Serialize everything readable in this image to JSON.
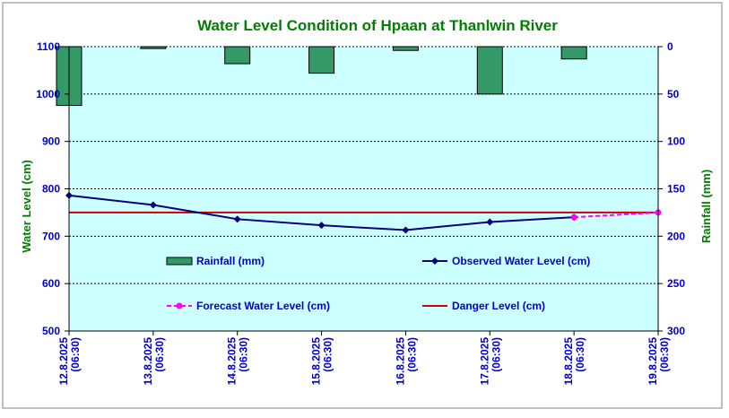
{
  "chart_data": {
    "type": "line",
    "title": "Water Level Condition of Hpaan at Thanlwin River",
    "x": [
      "12.8.2025\n(06:30)",
      "13.8.2025\n(06:30)",
      "14.8.2025\n(06:30)",
      "15.8.2025\n(06:30)",
      "16.8.2025\n(06:30)",
      "17.8.2025\n(06:30)",
      "18.8.2025\n(06:30)",
      "19.8.2025\n(06:30)"
    ],
    "ylabel": "Water Level (cm)",
    "y2label": "Rainfall (mm)",
    "ylim": [
      500,
      1100
    ],
    "yticks": [
      500,
      600,
      700,
      800,
      900,
      1000,
      1100
    ],
    "y2lim": [
      300,
      0
    ],
    "y2ticks": [
      0,
      50,
      100,
      150,
      200,
      250,
      300
    ],
    "grid": true,
    "legend_position": "inside-lower-middle",
    "series": [
      {
        "name": "Rainfall (mm)",
        "type": "bar",
        "axis": "right",
        "color": "#339966",
        "values": [
          62,
          2,
          18,
          28,
          4,
          50,
          13,
          null
        ]
      },
      {
        "name": "Observed Water Level (cm)",
        "type": "line",
        "axis": "left",
        "color": "#000080",
        "marker": "diamond",
        "values": [
          786,
          766,
          736,
          723,
          713,
          730,
          740,
          null
        ]
      },
      {
        "name": "Forecast Water Level (cm)",
        "type": "line",
        "axis": "left",
        "color": "#ff00ff",
        "dashed": true,
        "marker": "circle",
        "values": [
          null,
          null,
          null,
          null,
          null,
          null,
          740,
          750
        ]
      },
      {
        "name": "Danger Level (cm)",
        "type": "line",
        "axis": "left",
        "color": "#cc0000",
        "values": [
          750,
          750,
          750,
          750,
          750,
          750,
          750,
          750
        ]
      }
    ]
  },
  "colors": {
    "plot_background": "#ccffff",
    "title": "#008000",
    "axis_text": "#0000cc",
    "axis_title": "#008000"
  }
}
